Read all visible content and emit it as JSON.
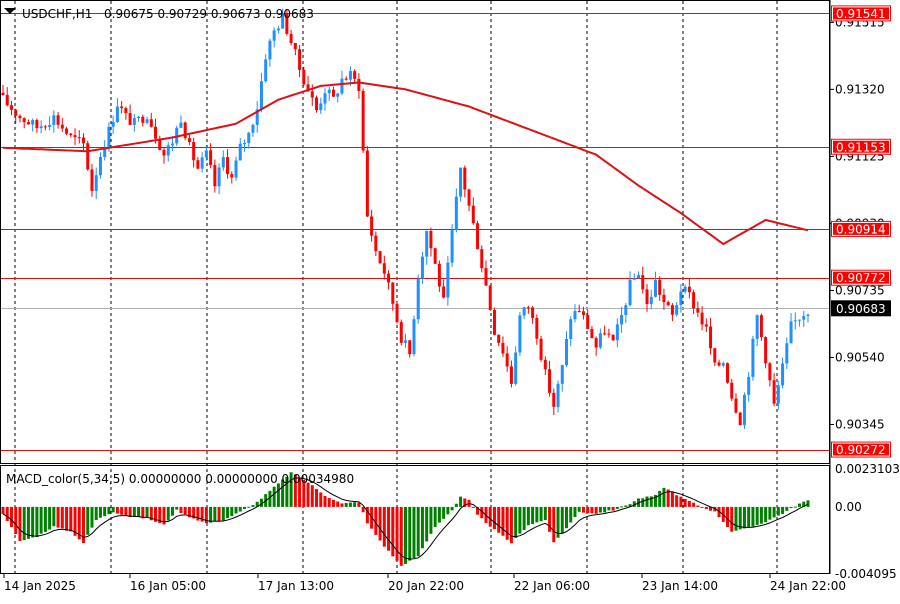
{
  "header": {
    "symbol_label": "USDCHF,H1",
    "ohlc_text": "0.90675 0.90729 0.90673 0.90683"
  },
  "indicator": {
    "label_text": "MACD_color(5,34,5) 0.00000000 0.00000000 0.00034980"
  },
  "colors": {
    "background": "#ffffff",
    "bull_candle": "#1e90ff",
    "bear_candle": "#ff0000",
    "ma_line": "#dd1111",
    "level_line": "#dd1111",
    "level_label_bg": "#ff0000",
    "current_price_bg": "#000000",
    "grid": "#000000",
    "macd_up": "#008000",
    "macd_down": "#ff0000",
    "signal_line": "#000000"
  },
  "chart_data": [
    {
      "type": "candlestick",
      "title": "USDCHF,H1",
      "ylim": [
        0.9023,
        0.9158
      ],
      "y_ticks": [
        {
          "value": 0.91515,
          "label": "0.91515"
        },
        {
          "value": 0.9132,
          "label": "0.91320"
        },
        {
          "value": 0.91125,
          "label": "0.91125"
        },
        {
          "value": 0.9093,
          "label": "0.90930"
        },
        {
          "value": 0.90735,
          "label": "0.90735"
        },
        {
          "value": 0.9054,
          "label": "0.90540"
        },
        {
          "value": 0.90345,
          "label": "0.90345"
        }
      ],
      "price_levels": [
        {
          "value": 0.91541,
          "label": "0.91541"
        },
        {
          "value": 0.91153,
          "label": "0.91153"
        },
        {
          "value": 0.90914,
          "label": "0.90914"
        },
        {
          "value": 0.90772,
          "label": "0.90772"
        },
        {
          "value": 0.90272,
          "label": "0.90272"
        }
      ],
      "current_price": {
        "value": 0.90683,
        "label": "0.90683"
      },
      "x_labels": [
        "14 Jan 2025",
        "16 Jan 05:00",
        "17 Jan 13:00",
        "20 Jan 22:00",
        "22 Jan 06:00",
        "23 Jan 14:00",
        "24 Jan 22:00"
      ],
      "grid": "vertical-dotted",
      "close_path": [
        [
          0,
          0.9129
        ],
        [
          4,
          0.9124
        ],
        [
          8,
          0.9121
        ],
        [
          12,
          0.9124
        ],
        [
          16,
          0.9118
        ],
        [
          19,
          0.9116
        ],
        [
          21,
          0.9103
        ],
        [
          23,
          0.9113
        ],
        [
          25,
          0.912
        ],
        [
          27,
          0.9128
        ],
        [
          29,
          0.9124
        ],
        [
          31,
          0.9122
        ],
        [
          34,
          0.9125
        ],
        [
          36,
          0.9119
        ],
        [
          38,
          0.9113
        ],
        [
          40,
          0.9117
        ],
        [
          42,
          0.9124
        ],
        [
          44,
          0.9115
        ],
        [
          46,
          0.9109
        ],
        [
          48,
          0.9113
        ],
        [
          50,
          0.9104
        ],
        [
          52,
          0.9112
        ],
        [
          54,
          0.9106
        ],
        [
          56,
          0.9115
        ],
        [
          58,
          0.9119
        ],
        [
          60,
          0.9127
        ],
        [
          62,
          0.9142
        ],
        [
          64,
          0.9149
        ],
        [
          66,
          0.9153
        ],
        [
          68,
          0.9146
        ],
        [
          70,
          0.9138
        ],
        [
          72,
          0.9132
        ],
        [
          74,
          0.9126
        ],
        [
          76,
          0.9132
        ],
        [
          78,
          0.9129
        ],
        [
          80,
          0.9135
        ],
        [
          82,
          0.9136
        ],
        [
          84,
          0.9133
        ],
        [
          86,
          0.9095
        ],
        [
          88,
          0.9085
        ],
        [
          90,
          0.9079
        ],
        [
          92,
          0.907
        ],
        [
          94,
          0.906
        ],
        [
          96,
          0.9055
        ],
        [
          98,
          0.9078
        ],
        [
          100,
          0.9091
        ],
        [
          102,
          0.9081
        ],
        [
          104,
          0.907
        ],
        [
          106,
          0.909
        ],
        [
          108,
          0.9109
        ],
        [
          110,
          0.9098
        ],
        [
          112,
          0.9087
        ],
        [
          114,
          0.9075
        ],
        [
          116,
          0.9062
        ],
        [
          118,
          0.9056
        ],
        [
          120,
          0.9047
        ],
        [
          122,
          0.9066
        ],
        [
          124,
          0.9069
        ],
        [
          126,
          0.9061
        ],
        [
          128,
          0.9049
        ],
        [
          130,
          0.904
        ],
        [
          132,
          0.9051
        ],
        [
          134,
          0.9066
        ],
        [
          136,
          0.9068
        ],
        [
          138,
          0.9063
        ],
        [
          140,
          0.9057
        ],
        [
          142,
          0.9062
        ],
        [
          144,
          0.9058
        ],
        [
          146,
          0.9066
        ],
        [
          148,
          0.9075
        ],
        [
          150,
          0.9079
        ],
        [
          152,
          0.9069
        ],
        [
          154,
          0.9076
        ],
        [
          156,
          0.907
        ],
        [
          158,
          0.9066
        ],
        [
          160,
          0.9074
        ],
        [
          162,
          0.9072
        ],
        [
          164,
          0.9067
        ],
        [
          166,
          0.9062
        ],
        [
          168,
          0.9051
        ],
        [
          170,
          0.9053
        ],
        [
          172,
          0.9043
        ],
        [
          174,
          0.9036
        ],
        [
          176,
          0.905
        ],
        [
          178,
          0.9066
        ],
        [
          180,
          0.9054
        ],
        [
          182,
          0.904
        ],
        [
          184,
          0.9051
        ],
        [
          186,
          0.9063
        ],
        [
          188,
          0.9066
        ],
        [
          190,
          0.9068
        ]
      ],
      "ma": [
        [
          0,
          0.9115
        ],
        [
          20,
          0.9114
        ],
        [
          40,
          0.9118
        ],
        [
          55,
          0.9122
        ],
        [
          65,
          0.9129
        ],
        [
          75,
          0.9133
        ],
        [
          84,
          0.9134
        ],
        [
          95,
          0.9132
        ],
        [
          110,
          0.9127
        ],
        [
          125,
          0.912
        ],
        [
          140,
          0.9113
        ],
        [
          150,
          0.9104
        ],
        [
          160,
          0.9096
        ],
        [
          170,
          0.9087
        ],
        [
          180,
          0.9094
        ],
        [
          190,
          0.9091
        ]
      ]
    },
    {
      "type": "histogram",
      "title": "MACD_color(5,34,5)",
      "ylim": [
        -0.0041,
        0.0025
      ],
      "y_ticks": [
        {
          "value": 0.0023103,
          "label": "0.0023103"
        },
        {
          "value": 0.0,
          "label": "0.00"
        },
        {
          "value": -0.004095,
          "label": "-0.004095"
        }
      ],
      "macd_path": [
        [
          0,
          -0.0004
        ],
        [
          4,
          -0.0021
        ],
        [
          8,
          -0.0018
        ],
        [
          12,
          -0.0012
        ],
        [
          16,
          -0.0015
        ],
        [
          19,
          -0.0022
        ],
        [
          22,
          -0.0008
        ],
        [
          26,
          -0.0003
        ],
        [
          30,
          -0.0006
        ],
        [
          34,
          -0.0007
        ],
        [
          38,
          -0.0011
        ],
        [
          41,
          -0.0002
        ],
        [
          44,
          -0.0006
        ],
        [
          48,
          -0.001
        ],
        [
          52,
          -0.0008
        ],
        [
          56,
          -0.0003
        ],
        [
          60,
          0.0003
        ],
        [
          64,
          0.0012
        ],
        [
          68,
          0.0021
        ],
        [
          72,
          0.0015
        ],
        [
          76,
          0.0007
        ],
        [
          80,
          0.0002
        ],
        [
          84,
          0.0003
        ],
        [
          86,
          -0.001
        ],
        [
          90,
          -0.0024
        ],
        [
          94,
          -0.0036
        ],
        [
          98,
          -0.003
        ],
        [
          102,
          -0.0012
        ],
        [
          106,
          -0.0002
        ],
        [
          108,
          0.0006
        ],
        [
          110,
          0.0004
        ],
        [
          112,
          -0.0005
        ],
        [
          116,
          -0.0014
        ],
        [
          120,
          -0.0022
        ],
        [
          124,
          -0.0011
        ],
        [
          128,
          -0.0008
        ],
        [
          130,
          -0.0022
        ],
        [
          132,
          -0.0016
        ],
        [
          136,
          -0.0003
        ],
        [
          140,
          -0.0004
        ],
        [
          144,
          -0.0002
        ],
        [
          148,
          0.0002
        ],
        [
          150,
          0.0005
        ],
        [
          154,
          0.0007
        ],
        [
          156,
          0.0012
        ],
        [
          160,
          0.0006
        ],
        [
          164,
          0.0001
        ],
        [
          168,
          -0.0003
        ],
        [
          172,
          -0.0015
        ],
        [
          176,
          -0.0013
        ],
        [
          180,
          -0.0009
        ],
        [
          184,
          -0.0004
        ],
        [
          188,
          0.0002
        ],
        [
          190,
          0.0004
        ]
      ]
    }
  ]
}
